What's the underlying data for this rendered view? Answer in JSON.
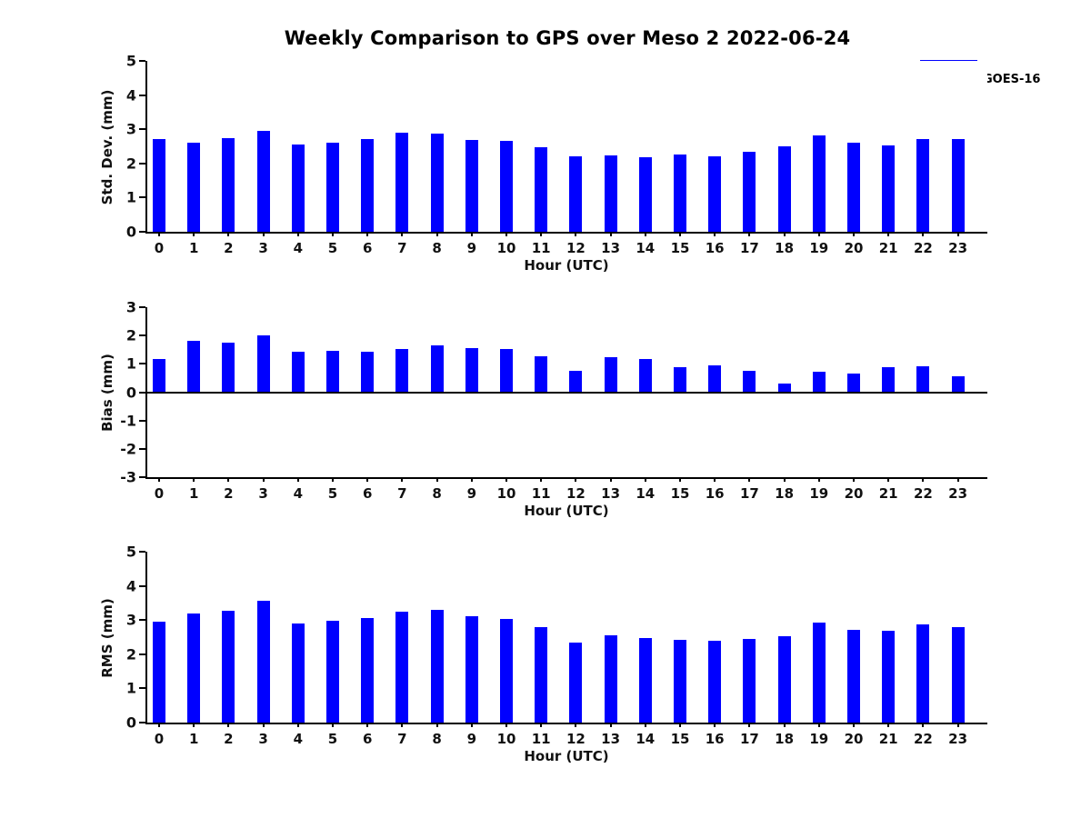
{
  "figure": {
    "title": "Weekly Comparison to GPS over Meso 2 2022-06-24",
    "legend": {
      "label": "GOES-16",
      "swatch_color": "#0000ff"
    },
    "bar_color": "#0000ff",
    "background_color": "#ffffff"
  },
  "chart_data": [
    {
      "type": "bar",
      "series_name": "GOES-16",
      "ylabel": "Std. Dev. (mm)",
      "xlabel": "Hour (UTC)",
      "categories": [
        "0",
        "1",
        "2",
        "3",
        "4",
        "5",
        "6",
        "7",
        "8",
        "9",
        "10",
        "11",
        "12",
        "13",
        "14",
        "15",
        "16",
        "17",
        "18",
        "19",
        "20",
        "21",
        "22",
        "23"
      ],
      "values": [
        2.72,
        2.61,
        2.75,
        2.95,
        2.54,
        2.61,
        2.72,
        2.9,
        2.87,
        2.69,
        2.67,
        2.48,
        2.22,
        2.24,
        2.17,
        2.27,
        2.21,
        2.35,
        2.5,
        2.82,
        2.61,
        2.53,
        2.7,
        2.72
      ],
      "ylim": [
        0,
        5
      ],
      "yticks": [
        0,
        1,
        2,
        3,
        4,
        5
      ],
      "grid": false,
      "legend_position": "upper-right-outside"
    },
    {
      "type": "bar",
      "series_name": "GOES-16",
      "ylabel": "Bias (mm)",
      "xlabel": "Hour (UTC)",
      "categories": [
        "0",
        "1",
        "2",
        "3",
        "4",
        "5",
        "6",
        "7",
        "8",
        "9",
        "10",
        "11",
        "12",
        "13",
        "14",
        "15",
        "16",
        "17",
        "18",
        "19",
        "20",
        "21",
        "22",
        "23"
      ],
      "values": [
        1.17,
        1.82,
        1.76,
        2.0,
        1.42,
        1.47,
        1.42,
        1.51,
        1.64,
        1.57,
        1.52,
        1.27,
        0.77,
        1.22,
        1.16,
        0.88,
        0.95,
        0.74,
        0.31,
        0.73,
        0.66,
        0.87,
        0.92,
        0.56
      ],
      "ylim": [
        -3,
        3
      ],
      "yticks": [
        -3,
        -2,
        -1,
        0,
        1,
        2,
        3
      ],
      "zero_line": true,
      "grid": false
    },
    {
      "type": "bar",
      "series_name": "GOES-16",
      "ylabel": "RMS (mm)",
      "xlabel": "Hour (UTC)",
      "categories": [
        "0",
        "1",
        "2",
        "3",
        "4",
        "5",
        "6",
        "7",
        "8",
        "9",
        "10",
        "11",
        "12",
        "13",
        "14",
        "15",
        "16",
        "17",
        "18",
        "19",
        "20",
        "21",
        "22",
        "23"
      ],
      "values": [
        2.95,
        3.2,
        3.27,
        3.56,
        2.91,
        2.99,
        3.07,
        3.25,
        3.31,
        3.12,
        3.04,
        2.79,
        2.35,
        2.56,
        2.48,
        2.42,
        2.39,
        2.45,
        2.53,
        2.92,
        2.71,
        2.68,
        2.86,
        2.79
      ],
      "ylim": [
        0,
        5
      ],
      "yticks": [
        0,
        1,
        2,
        3,
        4,
        5
      ],
      "grid": false
    }
  ]
}
